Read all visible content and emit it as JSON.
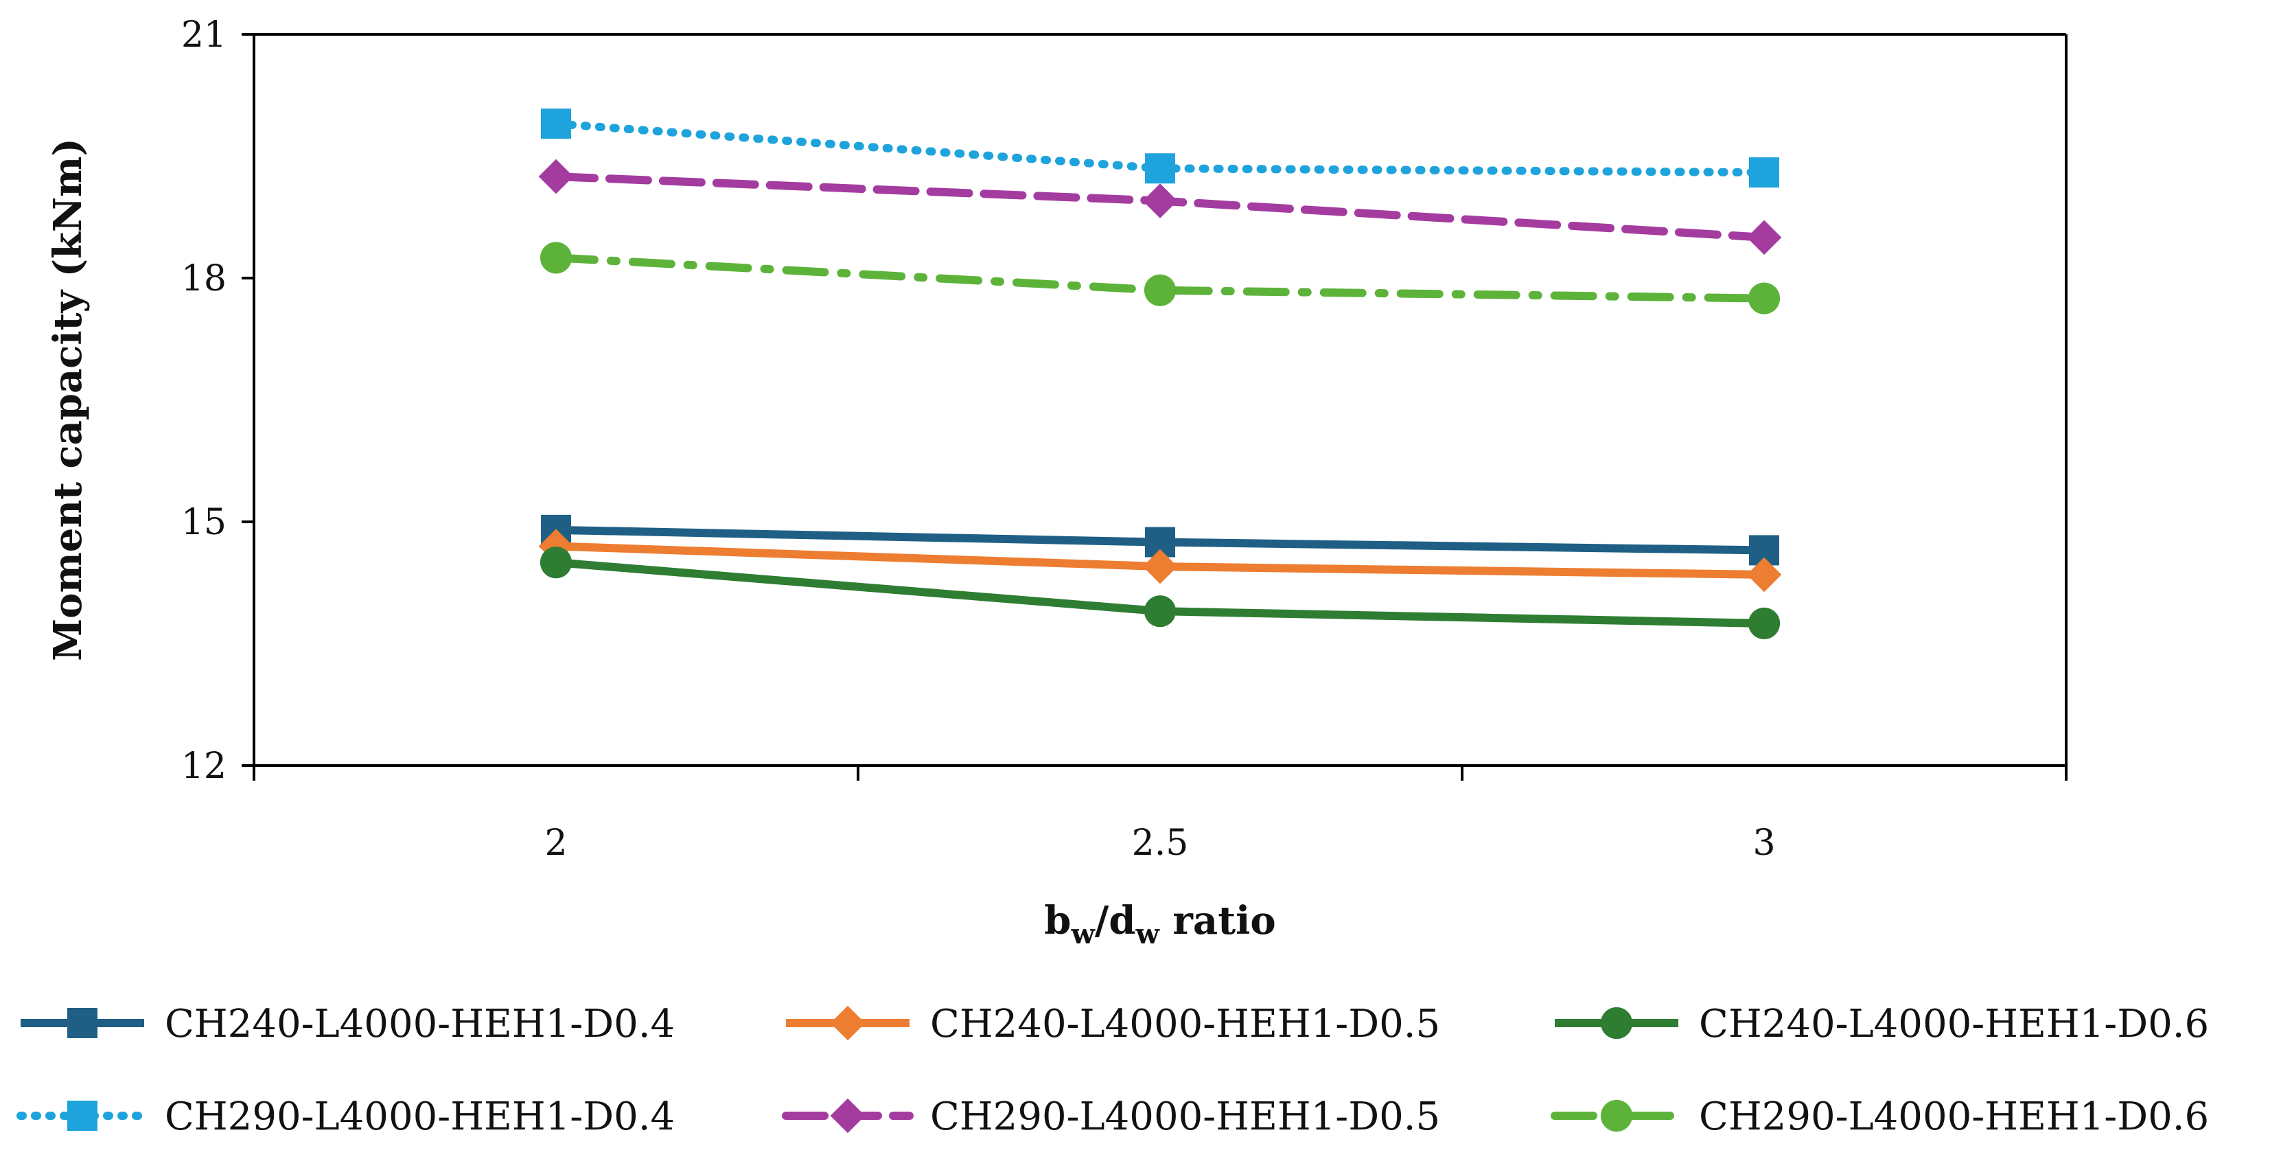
{
  "chart_data": {
    "type": "line",
    "title": "",
    "xlabel": {
      "b": "b",
      "w1": "w",
      "slash": "/",
      "d": "d",
      "w2": "w",
      "rest": " ratio"
    },
    "ylabel": "Moment capacity (kNm)",
    "x": [
      2,
      2.5,
      3
    ],
    "x_tick_labels": [
      "2",
      "2.5",
      "3"
    ],
    "xlim": [
      1.75,
      3.25
    ],
    "ylim": [
      12,
      21
    ],
    "y_ticks": [
      12,
      15,
      18,
      21
    ],
    "y_tick_labels": [
      "12",
      "15",
      "18",
      "21"
    ],
    "grid": false,
    "legend_position": "bottom",
    "series": [
      {
        "name": "CH240-L4000-HEH1-D0.4",
        "color": "#1f5f85",
        "marker": "square",
        "dash": "solid",
        "values": [
          14.9,
          14.75,
          14.65
        ]
      },
      {
        "name": "CH240-L4000-HEH1-D0.5",
        "color": "#ed7d31",
        "marker": "diamond",
        "dash": "solid",
        "values": [
          14.7,
          14.45,
          14.35
        ]
      },
      {
        "name": "CH240-L4000-HEH1-D0.6",
        "color": "#2e7d32",
        "marker": "circle",
        "dash": "solid",
        "values": [
          14.5,
          13.9,
          13.75
        ]
      },
      {
        "name": "CH290-L4000-HEH1-D0.4",
        "color": "#1fa3dc",
        "marker": "square",
        "dash": "dotted",
        "values": [
          19.9,
          19.35,
          19.3
        ]
      },
      {
        "name": "CH290-L4000-HEH1-D0.5",
        "color": "#a43ca0",
        "marker": "diamond",
        "dash": "dashed",
        "values": [
          19.25,
          18.95,
          18.5
        ]
      },
      {
        "name": "CH290-L4000-HEH1-D0.6",
        "color": "#5db33a",
        "marker": "circle",
        "dash": "dashdot",
        "values": [
          18.25,
          17.85,
          17.75
        ]
      }
    ]
  }
}
